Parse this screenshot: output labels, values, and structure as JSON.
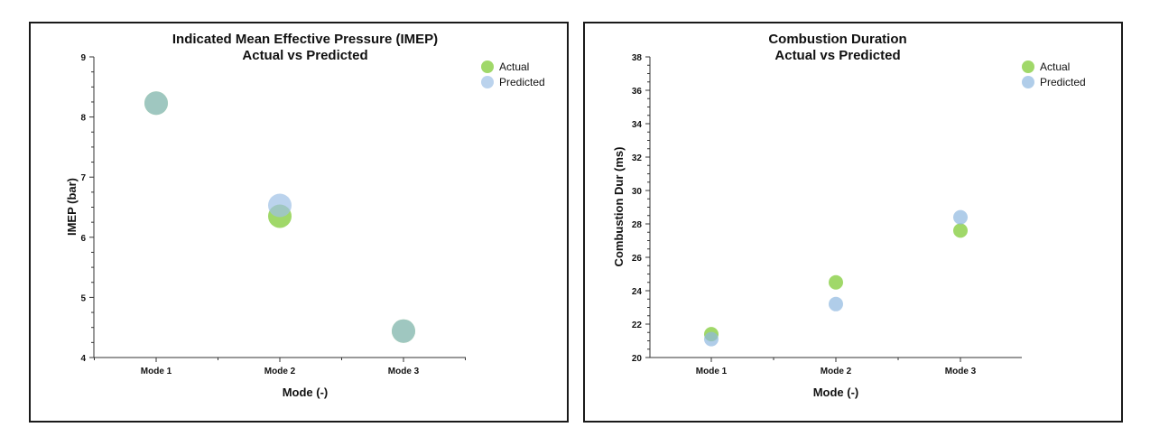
{
  "chart_data": [
    {
      "type": "scatter",
      "title": "Indicated Mean Effective Pressure (IMEP)",
      "subtitle": "Actual vs Predicted",
      "xlabel": "Mode (-)",
      "ylabel": "IMEP (bar)",
      "categories": [
        "Mode 1",
        "Mode 2",
        "Mode 3"
      ],
      "ylim": [
        4,
        9
      ],
      "yticks": [
        "4",
        "5",
        "6",
        "7",
        "8",
        "9"
      ],
      "series": [
        {
          "name": "Actual",
          "color": "#8fd14f",
          "values": [
            8.23,
            6.35,
            4.44
          ]
        },
        {
          "name": "Predicted",
          "color": "#9ec0e6",
          "values": [
            8.23,
            6.53,
            4.44
          ]
        }
      ],
      "legend": "top-right",
      "grid": false
    },
    {
      "type": "scatter",
      "title": "Combustion Duration",
      "subtitle": "Actual vs Predicted",
      "xlabel": "Mode (-)",
      "ylabel": "Combustion Dur (ms)",
      "categories": [
        "Mode 1",
        "Mode 2",
        "Mode 3"
      ],
      "ylim": [
        20,
        38
      ],
      "yticks": [
        "20",
        "22",
        "24",
        "26",
        "28",
        "30",
        "32",
        "34",
        "36",
        "38"
      ],
      "series": [
        {
          "name": "Actual",
          "color": "#8fd14f",
          "values": [
            21.4,
            24.5,
            27.6
          ]
        },
        {
          "name": "Predicted",
          "color": "#8fb8e0",
          "values": [
            21.1,
            23.2,
            28.4
          ]
        }
      ],
      "legend": "top-right",
      "grid": false
    }
  ]
}
